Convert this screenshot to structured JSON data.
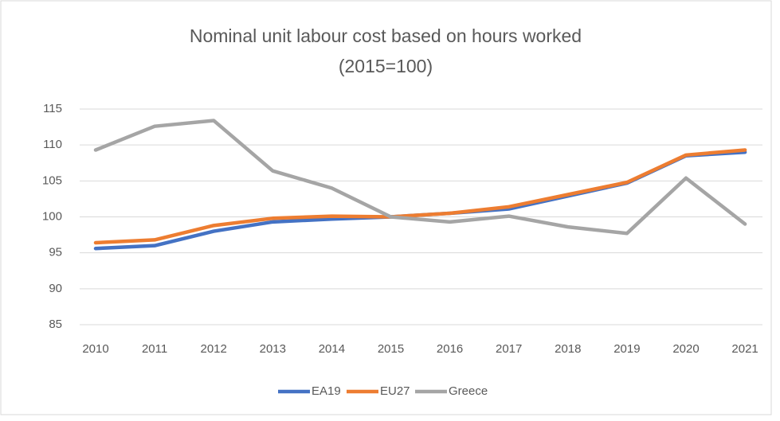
{
  "chart_data": {
    "type": "line",
    "title": "Nominal unit labour cost based on hours worked",
    "subtitle": "(2015=100)",
    "categories": [
      "2010",
      "2011",
      "2012",
      "2013",
      "2014",
      "2015",
      "2016",
      "2017",
      "2018",
      "2019",
      "2020",
      "2021"
    ],
    "series": [
      {
        "name": "EA19",
        "color": "#4472c4",
        "values": [
          95.6,
          96.0,
          98.0,
          99.3,
          99.7,
          100.0,
          100.5,
          101.1,
          102.9,
          104.7,
          108.5,
          109.0
        ]
      },
      {
        "name": "EU27",
        "color": "#ed7d31",
        "values": [
          96.4,
          96.8,
          98.8,
          99.8,
          100.1,
          100.0,
          100.5,
          101.4,
          103.1,
          104.8,
          108.6,
          109.3
        ]
      },
      {
        "name": "Greece",
        "color": "#a5a5a5",
        "values": [
          109.3,
          112.6,
          113.4,
          106.4,
          104.0,
          100.0,
          99.3,
          100.1,
          98.6,
          97.7,
          105.4,
          99.0
        ]
      }
    ],
    "ylim": [
      85,
      115
    ],
    "yticks": [
      85,
      90,
      95,
      100,
      105,
      110,
      115
    ],
    "grid": true,
    "legend": "bottom"
  }
}
